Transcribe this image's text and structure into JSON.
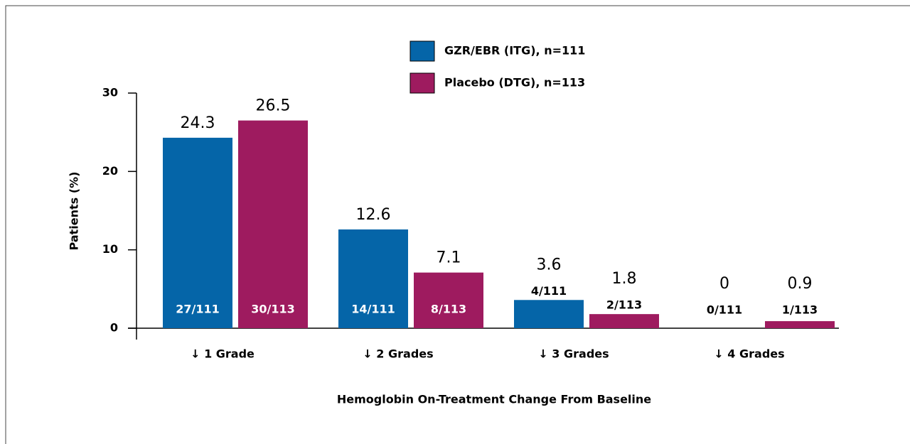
{
  "chart_data": {
    "type": "bar",
    "xlabel": "Hemoglobin On-Treatment Change From Baseline",
    "ylabel": "Patients (%)",
    "categories": [
      "↓ 1 Grade",
      "↓ 2 Grades",
      "↓ 3 Grades",
      "↓ 4 Grades"
    ],
    "series": [
      {
        "name": "GZR/EBR (ITG), n=111",
        "color": "#0565a8",
        "values": [
          24.3,
          12.6,
          3.6,
          0
        ],
        "counts": [
          "27/111",
          "14/111",
          "4/111",
          "0/111"
        ]
      },
      {
        "name": "Placebo (DTG), n=113",
        "color": "#9e1b5f",
        "values": [
          26.5,
          7.1,
          1.8,
          0.9
        ],
        "counts": [
          "30/113",
          "8/113",
          "2/113",
          "1/113"
        ]
      }
    ],
    "ylim": [
      0,
      30
    ],
    "yticks": [
      0,
      10,
      20,
      30
    ]
  }
}
